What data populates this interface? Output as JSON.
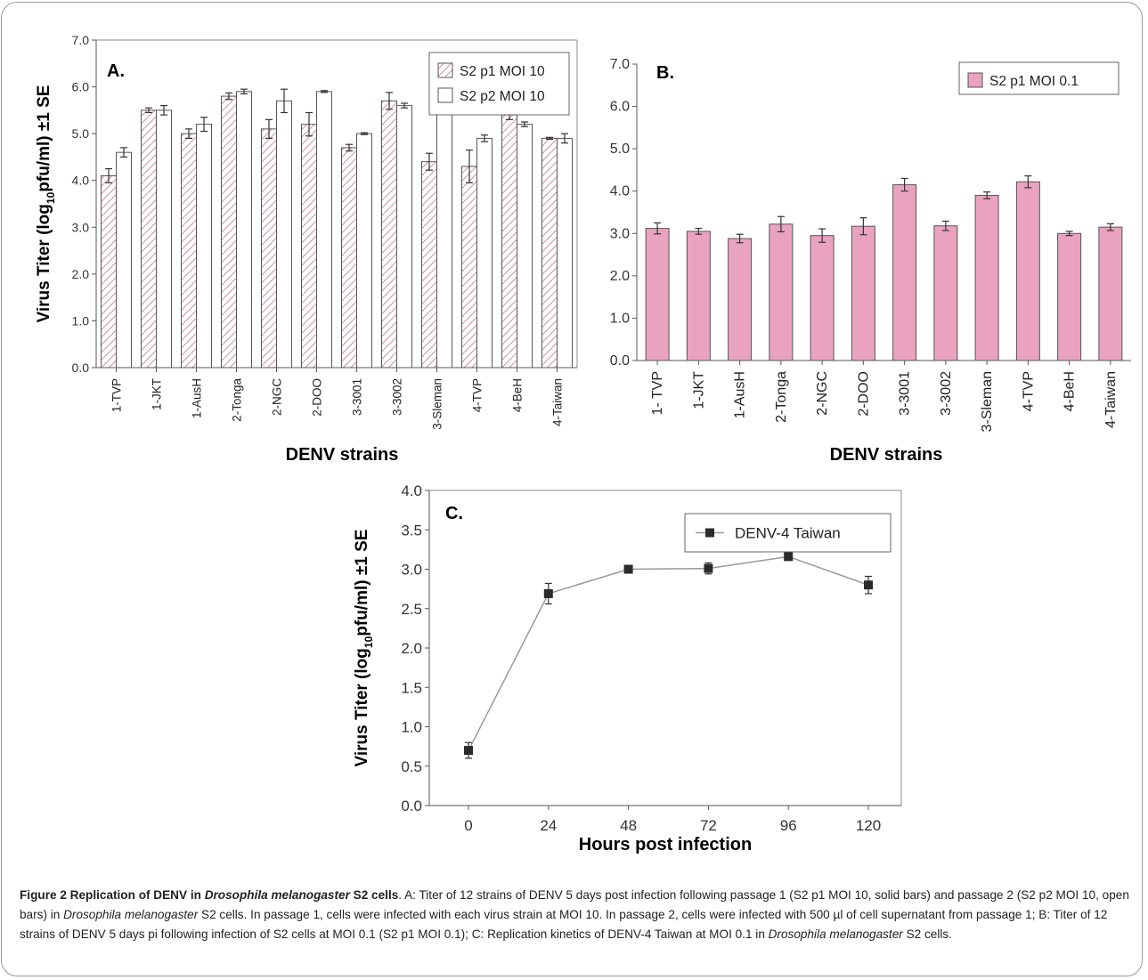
{
  "colors": {
    "pink_bar": "#e9a3bf",
    "hatch": "#c98fa4",
    "line": "#9a9a9a",
    "marker": "#2b2b2b"
  },
  "chart_data": [
    {
      "panel": "A.",
      "type": "bar",
      "ylabel_parts": [
        "Virus Titer (log",
        "10",
        "pfu/ml) ±1 SE"
      ],
      "xlabel": "DENV strains",
      "ylim": [
        0,
        7
      ],
      "yticks": [
        "0.0",
        "1.0",
        "2.0",
        "3.0",
        "4.0",
        "5.0",
        "6.0",
        "7.0"
      ],
      "categories": [
        "1-TVP",
        "1-JKT",
        "1-AusH",
        "2-Tonga",
        "2-NGC",
        "2-DOO",
        "3-3001",
        "3-3002",
        "3-Sleman",
        "4-TVP",
        "4-BeH",
        "4-Taiwan"
      ],
      "legend_position": "top-right",
      "series": [
        {
          "name": "S2 p1 MOI 10",
          "style": "hatched",
          "values": [
            4.1,
            5.5,
            5.0,
            5.8,
            5.1,
            5.2,
            4.7,
            5.7,
            4.4,
            4.3,
            5.4,
            4.9
          ],
          "errors": [
            0.15,
            0.05,
            0.1,
            0.07,
            0.2,
            0.25,
            0.07,
            0.18,
            0.18,
            0.35,
            0.1,
            0.02
          ]
        },
        {
          "name": "S2 p2 MOI 10",
          "style": "open",
          "values": [
            4.6,
            5.5,
            5.2,
            5.9,
            5.7,
            5.9,
            5.0,
            5.6,
            5.6,
            4.9,
            5.2,
            4.9
          ],
          "errors": [
            0.1,
            0.1,
            0.15,
            0.05,
            0.25,
            0.02,
            0.02,
            0.05,
            0.05,
            0.07,
            0.05,
            0.1
          ]
        }
      ]
    },
    {
      "panel": "B.",
      "type": "bar",
      "xlabel": "DENV strains",
      "ylim": [
        0,
        7
      ],
      "yticks": [
        "0.0",
        "1.0",
        "2.0",
        "3.0",
        "4.0",
        "5.0",
        "6.0",
        "7.0"
      ],
      "categories": [
        "1- TVP",
        "1-JKT",
        "1-AusH",
        "2-Tonga",
        "2-NGC",
        "2-DOO",
        "3-3001",
        "3-3002",
        "3-Sleman",
        "4-TVP",
        "4-BeH",
        "4-Taiwan"
      ],
      "legend_position": "top-right",
      "series": [
        {
          "name": "S2 p1 MOI 0.1",
          "values": [
            3.12,
            3.05,
            2.88,
            3.22,
            2.95,
            3.17,
            4.15,
            3.18,
            3.9,
            4.22,
            3.0,
            3.15
          ],
          "errors": [
            0.13,
            0.07,
            0.1,
            0.18,
            0.16,
            0.2,
            0.15,
            0.11,
            0.08,
            0.14,
            0.05,
            0.08
          ]
        }
      ]
    },
    {
      "panel": "C.",
      "type": "line",
      "ylabel_parts": [
        "Virus Titer (log",
        "10",
        "pfu/ml) ±1 SE"
      ],
      "xlabel": "Hours post infection",
      "ylim": [
        0,
        4
      ],
      "yticks": [
        "0.0",
        "0.5",
        "1.0",
        "1.5",
        "2.0",
        "2.5",
        "3.0",
        "3.5",
        "4.0"
      ],
      "x": [
        0,
        24,
        48,
        72,
        96,
        120
      ],
      "xtick_labels": [
        "0",
        "24",
        "48",
        "72",
        "96",
        "120"
      ],
      "legend_position": "top-right",
      "series": [
        {
          "name": "DENV-4 Taiwan",
          "values": [
            0.7,
            2.69,
            3.0,
            3.01,
            3.16,
            2.8
          ],
          "errors": [
            0.1,
            0.13,
            0.03,
            0.07,
            0.03,
            0.11
          ]
        }
      ]
    }
  ],
  "caption": {
    "segments": [
      {
        "t": "Figure 2 Replication of DENV in ",
        "s": "b"
      },
      {
        "t": "Drosophila melanogaster",
        "s": "bi"
      },
      {
        "t": " S2 cells",
        "s": "b"
      },
      {
        "t": ". A: Titer of 12 strains of DENV 5 days post infection following passage 1 (S2 p1 MOI 10, solid bars) and passage 2 (S2 p2 MOI 10, open bars) in ",
        "s": ""
      },
      {
        "t": "Drosophila melanogaster",
        "s": "i"
      },
      {
        "t": " S2 cells. In passage 1, cells were infected with each virus strain at MOI 10. In passage 2, cells were infected with 500 µl of cell supernatant from passage 1; B: Titer of 12 strains of DENV 5 days pi following infection of S2 cells at MOI 0.1 (S2 p1 MOI 0.1); C: Replication kinetics of DENV-4 Taiwan at MOI 0.1 in ",
        "s": ""
      },
      {
        "t": "Drosophila melanogaster",
        "s": "i"
      },
      {
        "t": " S2 cells.",
        "s": ""
      }
    ]
  }
}
